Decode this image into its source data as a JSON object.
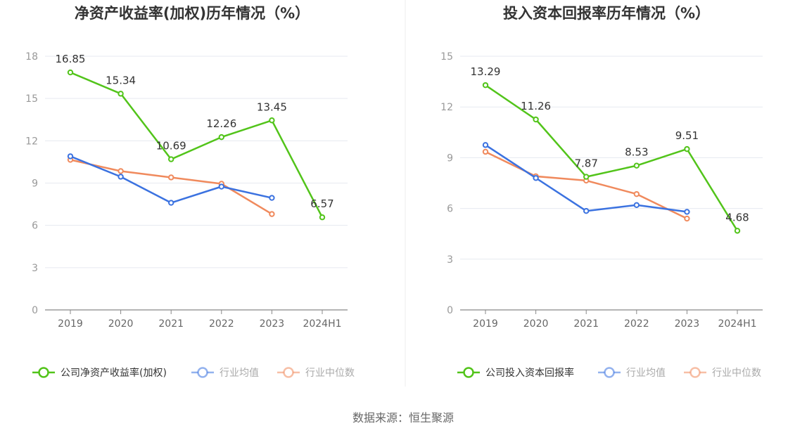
{
  "source": "数据来源：恒生聚源",
  "chart_data": [
    {
      "type": "line",
      "title": "净资产收益率(加权)历年情况（%）",
      "categories": [
        "2019",
        "2020",
        "2021",
        "2022",
        "2023",
        "2024H1"
      ],
      "ylim": [
        0,
        18
      ],
      "yticks": [
        0,
        3,
        6,
        9,
        12,
        15,
        18
      ],
      "grid": true,
      "legend_position": "bottom",
      "series": [
        {
          "name": "公司净资产收益率(加权)",
          "color": "#52c41a",
          "values": [
            16.85,
            15.34,
            10.69,
            12.26,
            13.45,
            6.57
          ],
          "labels": [
            "16.85",
            "15.34",
            "10.69",
            "12.26",
            "13.45",
            "6.57"
          ]
        },
        {
          "name": "行业均值",
          "color": "#3b72e0",
          "values": [
            10.9,
            9.45,
            7.6,
            8.75,
            7.95,
            null
          ]
        },
        {
          "name": "行业中位数",
          "color": "#f08a5d",
          "values": [
            10.65,
            9.85,
            9.4,
            8.95,
            6.8,
            null
          ]
        }
      ]
    },
    {
      "type": "line",
      "title": "投入资本回报率历年情况（%）",
      "categories": [
        "2019",
        "2020",
        "2021",
        "2022",
        "2023",
        "2024H1"
      ],
      "ylim": [
        0,
        15
      ],
      "yticks": [
        0,
        3,
        6,
        9,
        12,
        15
      ],
      "grid": true,
      "legend_position": "bottom",
      "series": [
        {
          "name": "公司投入资本回报率",
          "color": "#52c41a",
          "values": [
            13.29,
            11.26,
            7.87,
            8.53,
            9.51,
            4.68
          ],
          "labels": [
            "13.29",
            "11.26",
            "7.87",
            "8.53",
            "9.51",
            "4.68"
          ]
        },
        {
          "name": "行业均值",
          "color": "#3b72e0",
          "values": [
            9.75,
            7.8,
            5.85,
            6.2,
            5.8,
            null
          ]
        },
        {
          "name": "行业中位数",
          "color": "#f08a5d",
          "values": [
            9.35,
            7.9,
            7.65,
            6.85,
            5.4,
            null
          ]
        }
      ]
    }
  ]
}
